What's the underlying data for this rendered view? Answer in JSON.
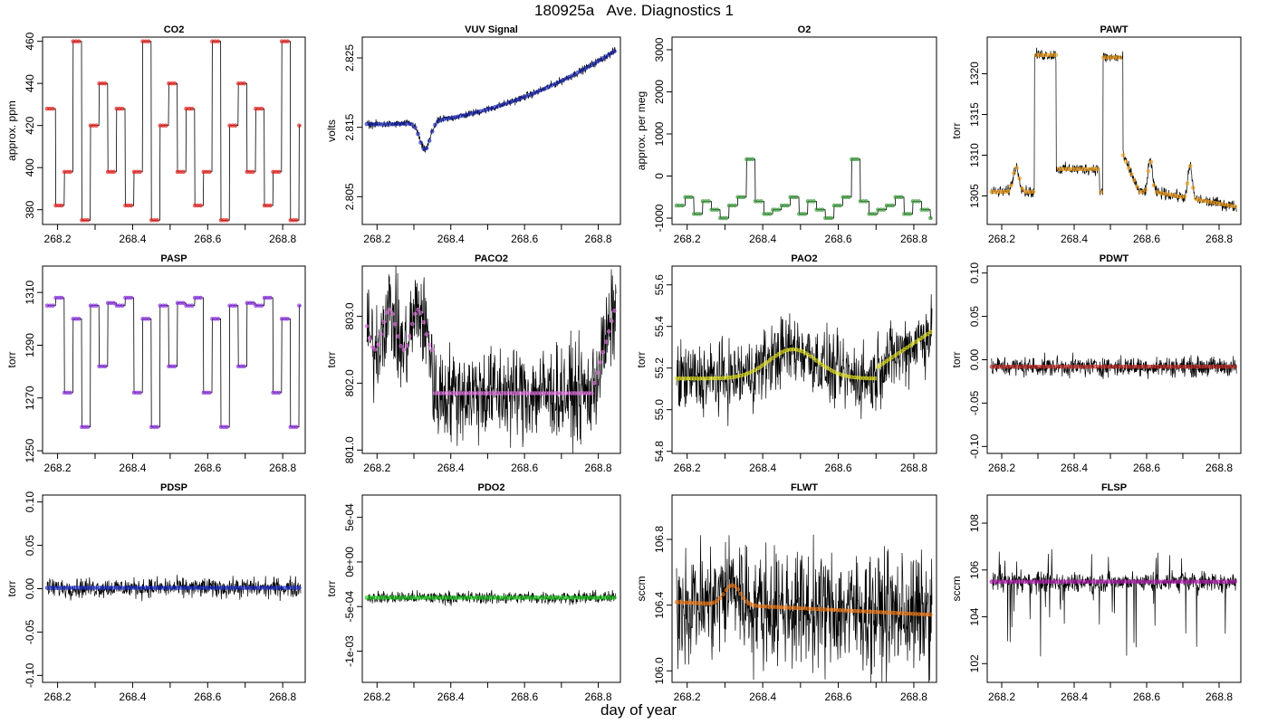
{
  "title": "180925a   Ave. Diagnostics 1",
  "xlabel": "day of year",
  "chart_data": [
    {
      "type": "line",
      "title": "CO2",
      "ylabel": "approx. ppm",
      "xlim": [
        268.16,
        268.86
      ],
      "ylim": [
        373,
        462
      ],
      "yticks": [
        {
          "v": 380,
          "l": "380"
        },
        {
          "v": 400,
          "l": "400"
        },
        {
          "v": 420,
          "l": "420"
        },
        {
          "v": 440,
          "l": "440"
        },
        {
          "v": 460,
          "l": "460"
        }
      ],
      "xticks": [
        {
          "v": 268.2,
          "l": "268.2"
        },
        {
          "v": 268.4,
          "l": "268.4"
        },
        {
          "v": 268.6,
          "l": "268.6"
        },
        {
          "v": 268.8,
          "l": "268.8"
        }
      ],
      "marker_color": "#e8201c",
      "pattern": "co2",
      "base": 420,
      "amp": 40,
      "noise": 0
    },
    {
      "type": "line",
      "title": "VUV Signal",
      "ylabel": "volts",
      "xlim": [
        268.16,
        268.86
      ],
      "ylim": [
        2.801,
        2.828
      ],
      "yticks": [
        {
          "v": 2.805,
          "l": "2.805"
        },
        {
          "v": 2.815,
          "l": "2.815"
        },
        {
          "v": 2.825,
          "l": "2.825"
        }
      ],
      "xticks": [
        {
          "v": 268.2,
          "l": "268.2"
        },
        {
          "v": 268.4,
          "l": "268.4"
        },
        {
          "v": 268.6,
          "l": "268.6"
        },
        {
          "v": 268.8,
          "l": "268.8"
        }
      ],
      "marker_color": "#1c2ab8",
      "pattern": "vuv",
      "base": 2.815,
      "amp": 0,
      "noise": 0.0004
    },
    {
      "type": "line",
      "title": "O2",
      "ylabel": "approx. per meg",
      "xlim": [
        268.16,
        268.86
      ],
      "ylim": [
        -1150,
        3300
      ],
      "yticks": [
        {
          "v": -1000,
          "l": "-1000"
        },
        {
          "v": 0,
          "l": "0"
        },
        {
          "v": 1000,
          "l": "1000"
        },
        {
          "v": 2000,
          "l": "2000"
        },
        {
          "v": 3000,
          "l": "3000"
        }
      ],
      "xticks": [
        {
          "v": 268.2,
          "l": "268.2"
        },
        {
          "v": 268.4,
          "l": "268.4"
        },
        {
          "v": 268.6,
          "l": "268.6"
        },
        {
          "v": 268.8,
          "l": "268.8"
        }
      ],
      "marker_color": "#3a9a3a",
      "pattern": "o2",
      "base": -700,
      "amp": 0,
      "noise": 0
    },
    {
      "type": "line",
      "title": "PAWT",
      "ylabel": "torr",
      "xlim": [
        268.16,
        268.86
      ],
      "ylim": [
        1301.5,
        1324.5
      ],
      "yticks": [
        {
          "v": 1305,
          "l": "1305"
        },
        {
          "v": 1310,
          "l": "1310"
        },
        {
          "v": 1315,
          "l": "1315"
        },
        {
          "v": 1320,
          "l": "1320"
        }
      ],
      "xticks": [
        {
          "v": 268.2,
          "l": "268.2"
        },
        {
          "v": 268.4,
          "l": "268.4"
        },
        {
          "v": 268.6,
          "l": "268.6"
        },
        {
          "v": 268.8,
          "l": "268.8"
        }
      ],
      "marker_color": "#f0a020",
      "pattern": "pawt",
      "base": 1308,
      "amp": 0,
      "noise": 0.5
    },
    {
      "type": "line",
      "title": "PASP",
      "ylabel": "torr",
      "xlim": [
        268.16,
        268.86
      ],
      "ylim": [
        1249,
        1320
      ],
      "yticks": [
        {
          "v": 1250,
          "l": "1250"
        },
        {
          "v": 1270,
          "l": "1270"
        },
        {
          "v": 1290,
          "l": "1290"
        },
        {
          "v": 1310,
          "l": "1310"
        }
      ],
      "xticks": [
        {
          "v": 268.2,
          "l": "268.2"
        },
        {
          "v": 268.4,
          "l": "268.4"
        },
        {
          "v": 268.6,
          "l": "268.6"
        },
        {
          "v": 268.8,
          "l": "268.8"
        }
      ],
      "marker_color": "#8a2be2",
      "pattern": "pasp",
      "base": 1300,
      "amp": 0,
      "noise": 0
    },
    {
      "type": "line",
      "title": "PACO2",
      "ylabel": "torr",
      "xlim": [
        268.16,
        268.86
      ],
      "ylim": [
        800.95,
        803.75
      ],
      "yticks": [
        {
          "v": 801.0,
          "l": "801.0"
        },
        {
          "v": 802.0,
          "l": "802.0"
        },
        {
          "v": 803.0,
          "l": "803.0"
        }
      ],
      "xticks": [
        {
          "v": 268.2,
          "l": "268.2"
        },
        {
          "v": 268.4,
          "l": "268.4"
        },
        {
          "v": 268.6,
          "l": "268.6"
        },
        {
          "v": 268.8,
          "l": "268.8"
        }
      ],
      "marker_color": "#e070e0",
      "pattern": "paco2",
      "base": 802,
      "amp": 0,
      "noise": 0.5
    },
    {
      "type": "line",
      "title": "PAO2",
      "ylabel": "torr",
      "xlim": [
        268.16,
        268.86
      ],
      "ylim": [
        54.79,
        55.69
      ],
      "yticks": [
        {
          "v": 54.8,
          "l": "54.8"
        },
        {
          "v": 55.0,
          "l": "55.0"
        },
        {
          "v": 55.2,
          "l": "55.2"
        },
        {
          "v": 55.4,
          "l": "55.4"
        },
        {
          "v": 55.6,
          "l": "55.6"
        }
      ],
      "xticks": [
        {
          "v": 268.2,
          "l": "268.2"
        },
        {
          "v": 268.4,
          "l": "268.4"
        },
        {
          "v": 268.6,
          "l": "268.6"
        },
        {
          "v": 268.8,
          "l": "268.8"
        }
      ],
      "marker_color": "#e0e020",
      "pattern": "pao2",
      "base": 55.2,
      "amp": 0,
      "noise": 0.12
    },
    {
      "type": "line",
      "title": "PDWT",
      "ylabel": "torr",
      "xlim": [
        268.16,
        268.86
      ],
      "ylim": [
        -0.108,
        0.108
      ],
      "yticks": [
        {
          "v": -0.1,
          "l": "-0.10"
        },
        {
          "v": -0.05,
          "l": "-0.05"
        },
        {
          "v": 0,
          "l": "0.00"
        },
        {
          "v": 0.05,
          "l": "0.05"
        },
        {
          "v": 0.1,
          "l": "0.10"
        }
      ],
      "xticks": [
        {
          "v": 268.2,
          "l": "268.2"
        },
        {
          "v": 268.4,
          "l": "268.4"
        },
        {
          "v": 268.6,
          "l": "268.6"
        },
        {
          "v": 268.8,
          "l": "268.8"
        }
      ],
      "marker_color": "#c0302a",
      "pattern": "flat",
      "base": -0.008,
      "amp": 0,
      "noise": 0.008
    },
    {
      "type": "line",
      "title": "PDSP",
      "ylabel": "torr",
      "xlim": [
        268.16,
        268.86
      ],
      "ylim": [
        -0.108,
        0.108
      ],
      "yticks": [
        {
          "v": -0.1,
          "l": "-0.10"
        },
        {
          "v": -0.05,
          "l": "-0.05"
        },
        {
          "v": 0,
          "l": "0.00"
        },
        {
          "v": 0.05,
          "l": "0.05"
        },
        {
          "v": 0.1,
          "l": "0.10"
        }
      ],
      "xticks": [
        {
          "v": 268.2,
          "l": "268.2"
        },
        {
          "v": 268.4,
          "l": "268.4"
        },
        {
          "v": 268.6,
          "l": "268.6"
        },
        {
          "v": 268.8,
          "l": "268.8"
        }
      ],
      "marker_color": "#1a2acc",
      "pattern": "flat",
      "base": 0.001,
      "amp": 0,
      "noise": 0.008
    },
    {
      "type": "line",
      "title": "PDO2",
      "ylabel": "torr",
      "xlim": [
        268.16,
        268.86
      ],
      "ylim": [
        -0.00135,
        0.00075
      ],
      "yticks": [
        {
          "v": -0.001,
          "l": "-1e-03"
        },
        {
          "v": -0.0005,
          "l": "-5e-04"
        },
        {
          "v": 0,
          "l": "0e+00"
        },
        {
          "v": 0.0005,
          "l": "5e-04"
        }
      ],
      "xticks": [
        {
          "v": 268.2,
          "l": "268.2"
        },
        {
          "v": 268.4,
          "l": "268.4"
        },
        {
          "v": 268.6,
          "l": "268.6"
        },
        {
          "v": 268.8,
          "l": "268.8"
        }
      ],
      "marker_color": "#22cc22",
      "pattern": "flat",
      "base": -0.0004,
      "amp": 0,
      "noise": 5e-05
    },
    {
      "type": "line",
      "title": "FLWT",
      "ylabel": "sccm",
      "xlim": [
        268.16,
        268.86
      ],
      "ylim": [
        105.93,
        107.07
      ],
      "yticks": [
        {
          "v": 106.0,
          "l": "106.0"
        },
        {
          "v": 106.4,
          "l": "106.4"
        },
        {
          "v": 106.8,
          "l": "106.8"
        }
      ],
      "xticks": [
        {
          "v": 268.2,
          "l": "268.2"
        },
        {
          "v": 268.4,
          "l": "268.4"
        },
        {
          "v": 268.6,
          "l": "268.6"
        },
        {
          "v": 268.8,
          "l": "268.8"
        }
      ],
      "marker_color": "#f07a18",
      "pattern": "flwt",
      "base": 106.45,
      "amp": 0,
      "noise": 0.25
    },
    {
      "type": "line",
      "title": "FLSP",
      "ylabel": "sccm",
      "xlim": [
        268.16,
        268.86
      ],
      "ylim": [
        101.2,
        109.2
      ],
      "yticks": [
        {
          "v": 102,
          "l": "102"
        },
        {
          "v": 104,
          "l": "104"
        },
        {
          "v": 106,
          "l": "106"
        },
        {
          "v": 108,
          "l": "108"
        }
      ],
      "xticks": [
        {
          "v": 268.2,
          "l": "268.2"
        },
        {
          "v": 268.4,
          "l": "268.4"
        },
        {
          "v": 268.6,
          "l": "268.6"
        },
        {
          "v": 268.8,
          "l": "268.8"
        }
      ],
      "marker_color": "#b020b0",
      "pattern": "flsp",
      "base": 105.5,
      "amp": 0,
      "noise": 0.3
    }
  ]
}
